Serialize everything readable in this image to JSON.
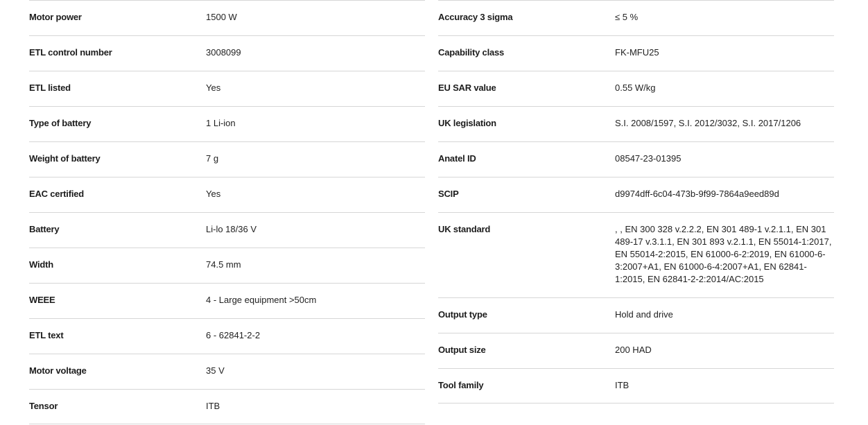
{
  "left": [
    {
      "label": "Motor power",
      "value": "1500 W"
    },
    {
      "label": "ETL control number",
      "value": "3008099"
    },
    {
      "label": "ETL listed",
      "value": "Yes"
    },
    {
      "label": "Type of battery",
      "value": "1 Li-ion"
    },
    {
      "label": "Weight of battery",
      "value": "7 g"
    },
    {
      "label": "EAC certified",
      "value": "Yes"
    },
    {
      "label": "Battery",
      "value": "Li-lo 18/36 V"
    },
    {
      "label": "Width",
      "value": "74.5 mm"
    },
    {
      "label": "WEEE",
      "value": "4 - Large equipment >50cm"
    },
    {
      "label": "ETL text",
      "value": "6 - 62841-2-2"
    },
    {
      "label": "Motor voltage",
      "value": "35 V"
    },
    {
      "label": "Tensor",
      "value": "ITB"
    }
  ],
  "right": [
    {
      "label": "Accuracy 3 sigma",
      "value": "≤ 5 %"
    },
    {
      "label": "Capability class",
      "value": "FK-MFU25"
    },
    {
      "label": "EU SAR value",
      "value": "0.55 W/kg"
    },
    {
      "label": "UK legislation",
      "value": "S.I. 2008/1597, S.I. 2012/3032, S.I. 2017/1206"
    },
    {
      "label": "Anatel ID",
      "value": "08547-23-01395"
    },
    {
      "label": "SCIP",
      "value": "d9974dff-6c04-473b-9f99-7864a9eed89d"
    },
    {
      "label": "UK standard",
      "value": ", , EN 300 328 v.2.2.2, EN 301 489-1 v.2.1.1, EN 301 489-17 v.3.1.1, EN 301 893 v.2.1.1, EN 55014-1:2017, EN 55014-2:2015, EN 61000-6-2:2019, EN 61000-6-3:2007+A1, EN 61000-6-4:2007+A1, EN 62841-1:2015, EN 62841-2-2:2014/AC:2015"
    },
    {
      "label": "Output type",
      "value": "Hold and drive"
    },
    {
      "label": "Output size",
      "value": "200 HAD"
    },
    {
      "label": "Tool family",
      "value": "ITB"
    }
  ]
}
